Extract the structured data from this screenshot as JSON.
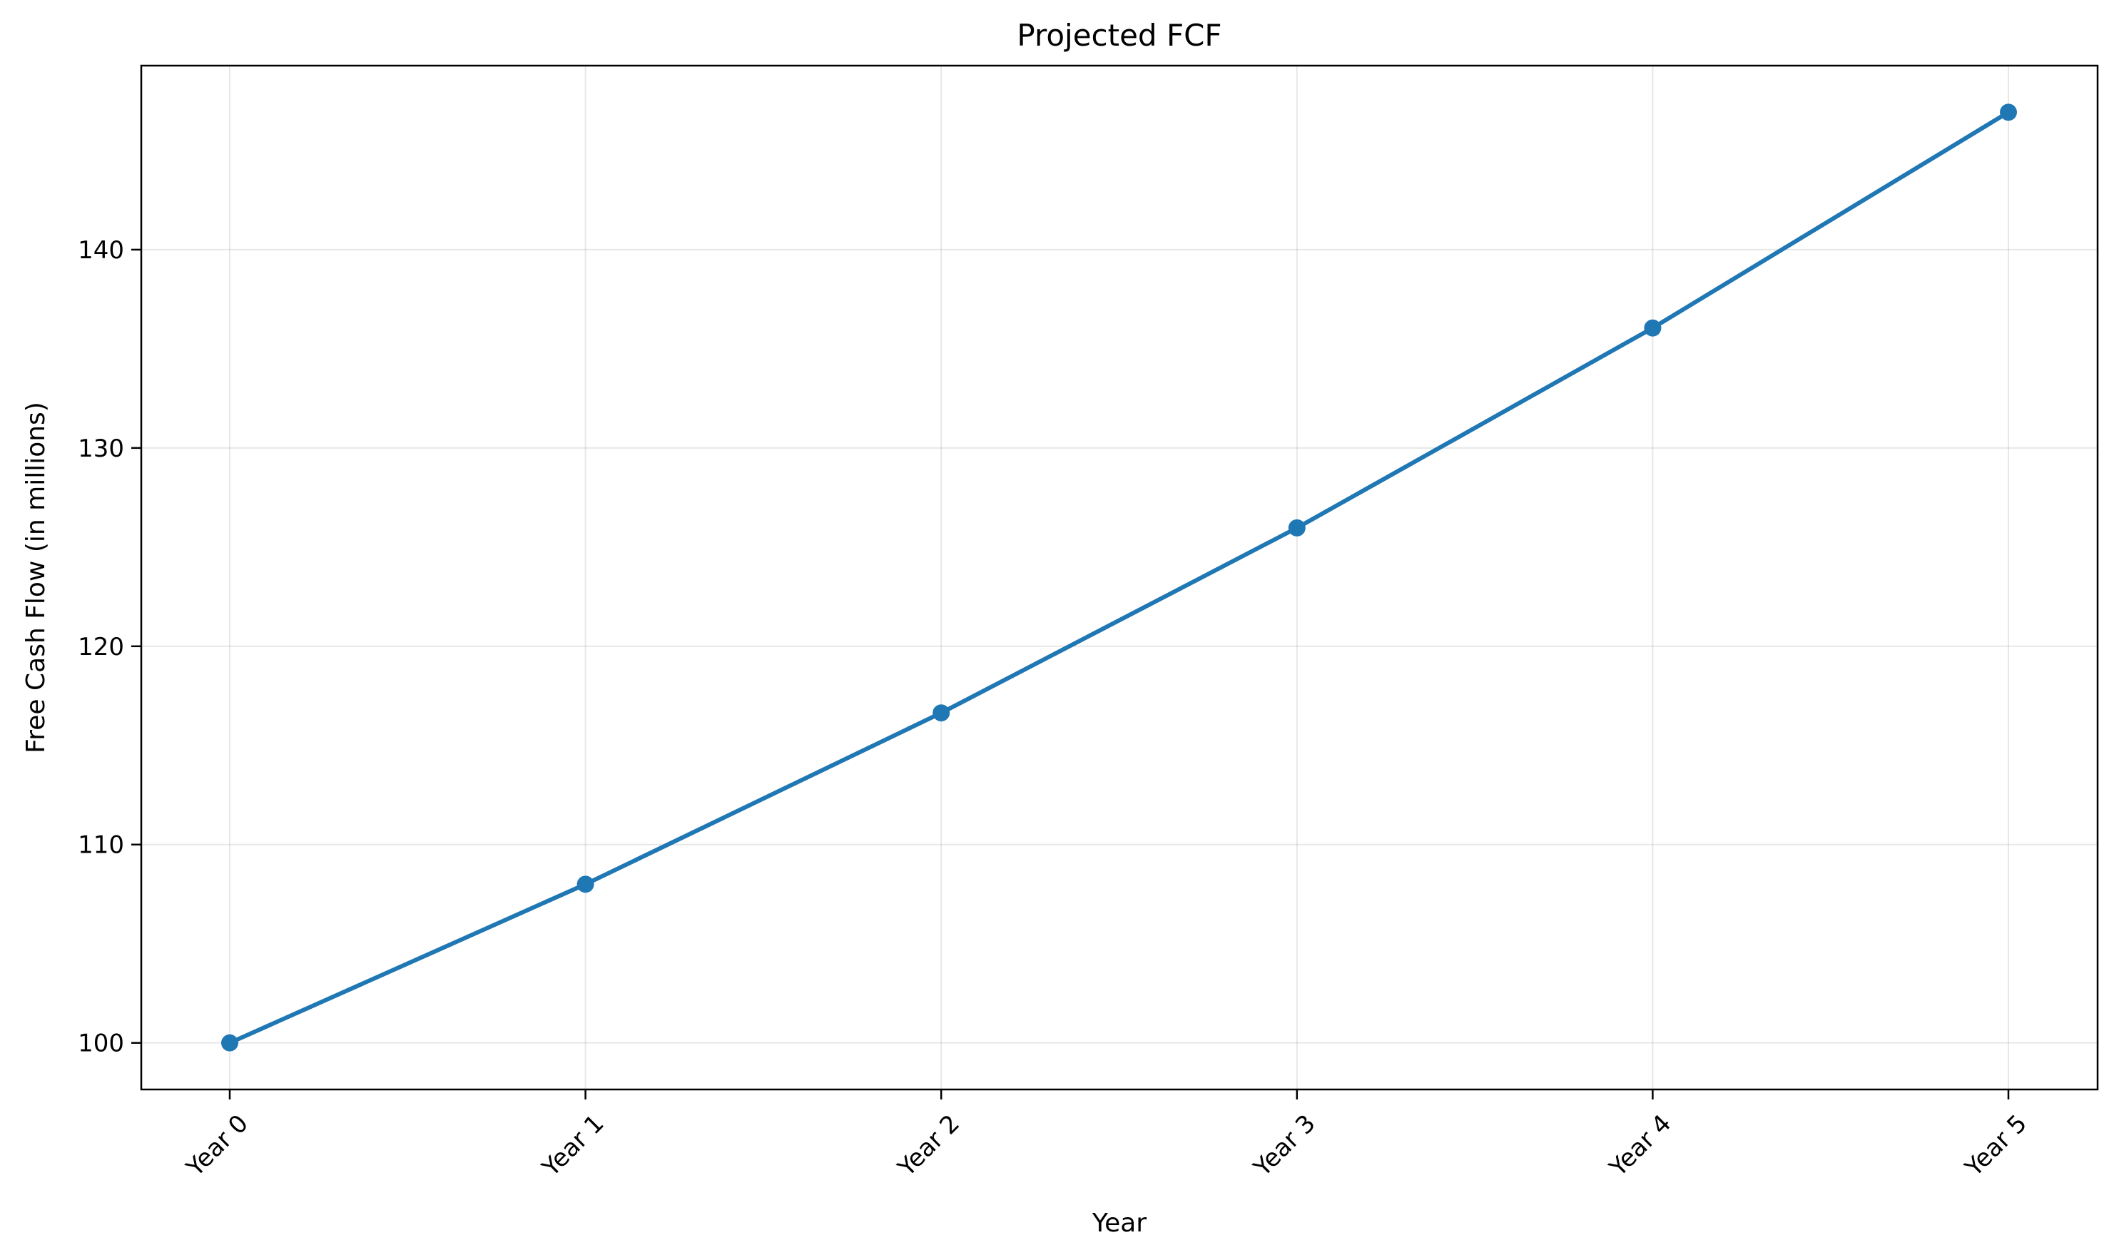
{
  "chart_data": {
    "type": "line",
    "title": "Projected FCF",
    "xlabel": "Year",
    "ylabel": "Free Cash Flow (in millions)",
    "categories": [
      "Year 0",
      "Year 1",
      "Year 2",
      "Year 3",
      "Year 4",
      "Year 5"
    ],
    "series": [
      {
        "values": [
          100.0,
          108.0,
          116.64,
          125.97,
          136.05,
          146.93
        ]
      }
    ],
    "ylim": [
      97.65,
      149.28
    ],
    "yticks": [
      100,
      110,
      120,
      130,
      140
    ],
    "grid": true,
    "line_color": "#1f77b4",
    "marker": "circle"
  }
}
